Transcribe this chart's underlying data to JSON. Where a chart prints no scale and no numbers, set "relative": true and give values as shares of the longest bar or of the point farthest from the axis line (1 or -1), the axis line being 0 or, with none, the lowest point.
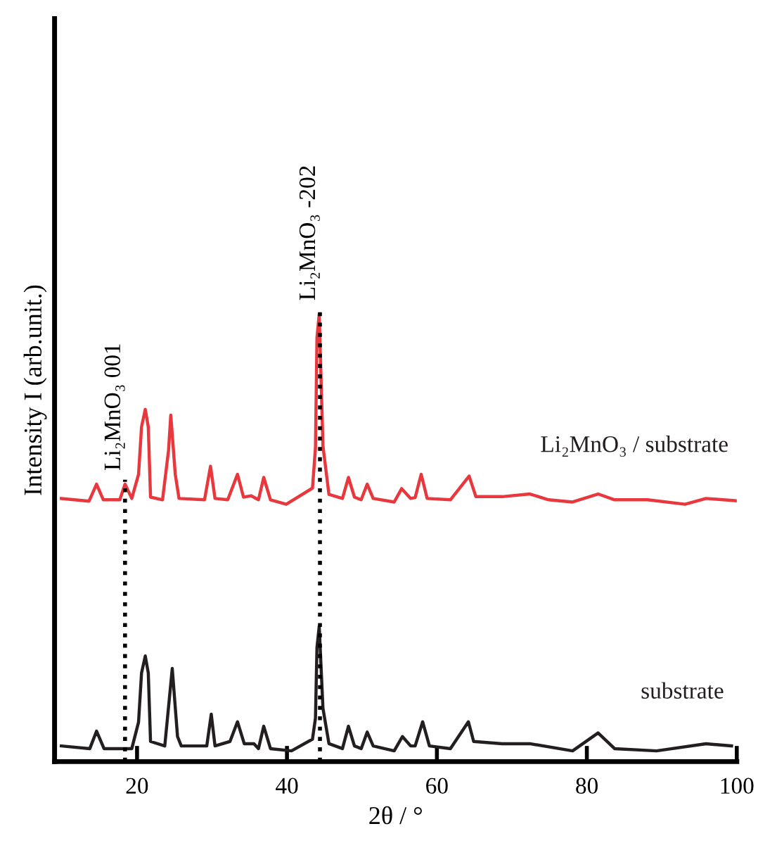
{
  "chart_data": {
    "type": "line",
    "relative": true,
    "xlabel": "2θ / °",
    "ylabel": "Intensity I (arb.unit.)",
    "xlim": [
      9,
      100
    ],
    "xticks": [
      20,
      40,
      60,
      80,
      100
    ],
    "grid": false,
    "legend": false,
    "marker": "none",
    "line_style": "solid",
    "ref_lines": [
      {
        "axis": "x",
        "value": 18.4,
        "label": "Li₂MnO₃ 001",
        "color": "#000000",
        "line_style": "dotted"
      },
      {
        "axis": "x",
        "value": 44.4,
        "label": "Li₂MnO₃ -202",
        "color": "#000000",
        "line_style": "dotted"
      }
    ],
    "series": [
      {
        "name": "Li₂MnO₃ / substrate",
        "color": "#e8383d",
        "x": [
          9.9,
          13.6,
          14.6,
          15.5,
          17.7,
          18.4,
          19.3,
          20.2,
          20.6,
          21.1,
          21.5,
          21.8,
          23.4,
          24.2,
          24.5,
          25.1,
          25.6,
          29.0,
          29.8,
          30.4,
          32.1,
          33.4,
          34.2,
          35.2,
          36.2,
          36.9,
          37.8,
          39.9,
          43.4,
          43.8,
          44.0,
          44.3,
          44.8,
          45.6,
          47.4,
          48.2,
          49.0,
          49.9,
          50.7,
          51.5,
          54.3,
          55.3,
          56.5,
          57.1,
          57.9,
          58.7,
          61.8,
          64.3,
          65.2,
          68.7,
          72.4,
          74.9,
          78.1,
          81.5,
          83.7,
          88.1,
          93.1,
          95.9,
          99.9
        ],
        "values": [
          0.588,
          0.582,
          0.62,
          0.585,
          0.585,
          0.62,
          0.588,
          0.642,
          0.748,
          0.787,
          0.748,
          0.591,
          0.585,
          0.695,
          0.774,
          0.642,
          0.588,
          0.585,
          0.66,
          0.588,
          0.585,
          0.642,
          0.591,
          0.594,
          0.585,
          0.635,
          0.585,
          0.575,
          0.611,
          0.701,
          0.947,
          1.0,
          0.705,
          0.597,
          0.588,
          0.635,
          0.591,
          0.585,
          0.62,
          0.588,
          0.58,
          0.61,
          0.588,
          0.59,
          0.642,
          0.588,
          0.585,
          0.638,
          0.592,
          0.592,
          0.598,
          0.585,
          0.58,
          0.598,
          0.585,
          0.585,
          0.575,
          0.588,
          0.583
        ]
      },
      {
        "name": "substrate",
        "color": "#231f20",
        "x": [
          9.9,
          13.7,
          14.6,
          15.6,
          19.3,
          20.2,
          20.6,
          21.1,
          21.5,
          21.8,
          23.7,
          24.3,
          24.7,
          25.4,
          25.9,
          29.3,
          29.9,
          30.4,
          32.4,
          33.4,
          34.3,
          35.6,
          36.2,
          36.9,
          37.8,
          40.6,
          43.4,
          43.8,
          44.0,
          44.3,
          44.8,
          45.6,
          47.4,
          48.2,
          49.0,
          49.9,
          50.7,
          51.5,
          54.3,
          55.4,
          56.5,
          57.1,
          58.1,
          59.0,
          61.8,
          64.2,
          64.9,
          68.7,
          72.4,
          78.1,
          81.5,
          83.7,
          89.3,
          95.9,
          99.3
        ],
        "values": [
          0.035,
          0.029,
          0.068,
          0.029,
          0.029,
          0.088,
          0.198,
          0.236,
          0.198,
          0.045,
          0.035,
          0.139,
          0.208,
          0.056,
          0.035,
          0.035,
          0.106,
          0.035,
          0.045,
          0.089,
          0.04,
          0.04,
          0.029,
          0.079,
          0.029,
          0.024,
          0.05,
          0.097,
          0.255,
          0.302,
          0.119,
          0.04,
          0.029,
          0.079,
          0.035,
          0.029,
          0.066,
          0.035,
          0.024,
          0.056,
          0.035,
          0.035,
          0.089,
          0.035,
          0.029,
          0.089,
          0.045,
          0.04,
          0.04,
          0.024,
          0.064,
          0.029,
          0.024,
          0.04,
          0.035
        ]
      }
    ]
  }
}
